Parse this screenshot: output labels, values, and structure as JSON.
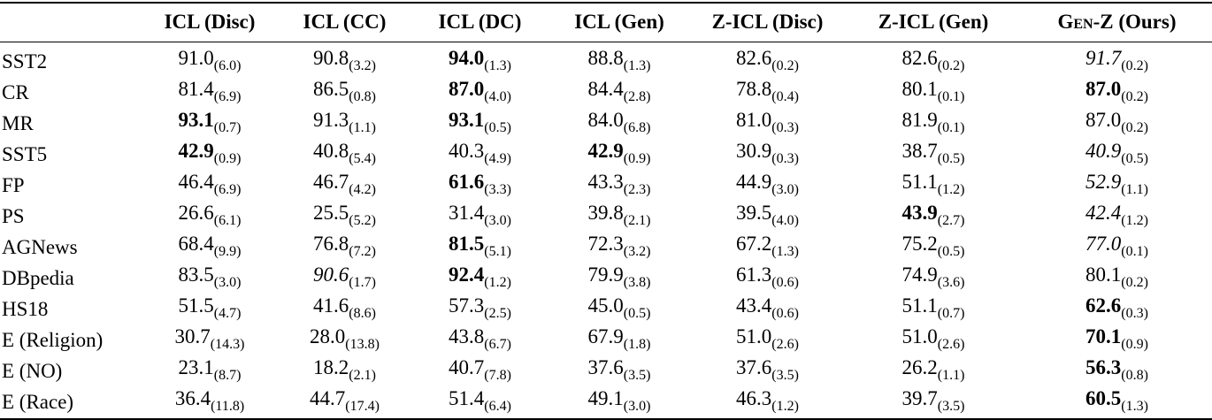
{
  "table": {
    "header": [
      "",
      "ICL (Disc)",
      "ICL (CC)",
      "ICL (DC)",
      "ICL (Gen)",
      "Z-ICL (Disc)",
      "Z-ICL (Gen)",
      {
        "name": "Gen-Z",
        "note": "(Ours)"
      }
    ],
    "rows": [
      {
        "label": "SST2",
        "cells": [
          {
            "value": "91.0",
            "sub": "(6.0)"
          },
          {
            "value": "90.8",
            "sub": "(3.2)"
          },
          {
            "value": "94.0",
            "sub": "(1.3)",
            "style": "bold"
          },
          {
            "value": "88.8",
            "sub": "(1.3)"
          },
          {
            "value": "82.6",
            "sub": "(0.2)"
          },
          {
            "value": "82.6",
            "sub": "(0.2)"
          },
          {
            "value": "91.7",
            "sub": "(0.2)",
            "style": "italic"
          }
        ]
      },
      {
        "label": "CR",
        "cells": [
          {
            "value": "81.4",
            "sub": "(6.9)"
          },
          {
            "value": "86.5",
            "sub": "(0.8)"
          },
          {
            "value": "87.0",
            "sub": "(4.0)",
            "style": "bold"
          },
          {
            "value": "84.4",
            "sub": "(2.8)"
          },
          {
            "value": "78.8",
            "sub": "(0.4)"
          },
          {
            "value": "80.1",
            "sub": "(0.1)"
          },
          {
            "value": "87.0",
            "sub": "(0.2)",
            "style": "bold"
          }
        ]
      },
      {
        "label": "MR",
        "cells": [
          {
            "value": "93.1",
            "sub": "(0.7)",
            "style": "bold"
          },
          {
            "value": "91.3",
            "sub": "(1.1)"
          },
          {
            "value": "93.1",
            "sub": "(0.5)",
            "style": "bold"
          },
          {
            "value": "84.0",
            "sub": "(6.8)"
          },
          {
            "value": "81.0",
            "sub": "(0.3)"
          },
          {
            "value": "81.9",
            "sub": "(0.1)"
          },
          {
            "value": "87.0",
            "sub": "(0.2)"
          }
        ]
      },
      {
        "label": "SST5",
        "cells": [
          {
            "value": "42.9",
            "sub": "(0.9)",
            "style": "bold"
          },
          {
            "value": "40.8",
            "sub": "(5.4)"
          },
          {
            "value": "40.3",
            "sub": "(4.9)"
          },
          {
            "value": "42.9",
            "sub": "(0.9)",
            "style": "bold"
          },
          {
            "value": "30.9",
            "sub": "(0.3)"
          },
          {
            "value": "38.7",
            "sub": "(0.5)"
          },
          {
            "value": "40.9",
            "sub": "(0.5)",
            "style": "italic"
          }
        ]
      },
      {
        "label": "FP",
        "cells": [
          {
            "value": "46.4",
            "sub": "(6.9)"
          },
          {
            "value": "46.7",
            "sub": "(4.2)"
          },
          {
            "value": "61.6",
            "sub": "(3.3)",
            "style": "bold"
          },
          {
            "value": "43.3",
            "sub": "(2.3)"
          },
          {
            "value": "44.9",
            "sub": "(3.0)"
          },
          {
            "value": "51.1",
            "sub": "(1.2)"
          },
          {
            "value": "52.9",
            "sub": "(1.1)",
            "style": "italic"
          }
        ]
      },
      {
        "label": "PS",
        "cells": [
          {
            "value": "26.6",
            "sub": "(6.1)"
          },
          {
            "value": "25.5",
            "sub": "(5.2)"
          },
          {
            "value": "31.4",
            "sub": "(3.0)"
          },
          {
            "value": "39.8",
            "sub": "(2.1)"
          },
          {
            "value": "39.5",
            "sub": "(4.0)"
          },
          {
            "value": "43.9",
            "sub": "(2.7)",
            "style": "bold"
          },
          {
            "value": "42.4",
            "sub": "(1.2)",
            "style": "italic"
          }
        ]
      },
      {
        "label": "AGNews",
        "cells": [
          {
            "value": "68.4",
            "sub": "(9.9)"
          },
          {
            "value": "76.8",
            "sub": "(7.2)"
          },
          {
            "value": "81.5",
            "sub": "(5.1)",
            "style": "bold"
          },
          {
            "value": "72.3",
            "sub": "(3.2)"
          },
          {
            "value": "67.2",
            "sub": "(1.3)"
          },
          {
            "value": "75.2",
            "sub": "(0.5)"
          },
          {
            "value": "77.0",
            "sub": "(0.1)",
            "style": "italic"
          }
        ]
      },
      {
        "label": "DBpedia",
        "cells": [
          {
            "value": "83.5",
            "sub": "(3.0)"
          },
          {
            "value": "90.6",
            "sub": "(1.7)",
            "style": "italic"
          },
          {
            "value": "92.4",
            "sub": "(1.2)",
            "style": "bold"
          },
          {
            "value": "79.9",
            "sub": "(3.8)"
          },
          {
            "value": "61.3",
            "sub": "(0.6)"
          },
          {
            "value": "74.9",
            "sub": "(3.6)"
          },
          {
            "value": "80.1",
            "sub": "(0.2)"
          }
        ]
      },
      {
        "label": "HS18",
        "cells": [
          {
            "value": "51.5",
            "sub": "(4.7)"
          },
          {
            "value": "41.6",
            "sub": "(8.6)"
          },
          {
            "value": "57.3",
            "sub": "(2.5)"
          },
          {
            "value": "45.0",
            "sub": "(0.5)"
          },
          {
            "value": "43.4",
            "sub": "(0.6)"
          },
          {
            "value": "51.1",
            "sub": "(0.7)"
          },
          {
            "value": "62.6",
            "sub": "(0.3)",
            "style": "bold"
          }
        ]
      },
      {
        "label": "E (Religion)",
        "cells": [
          {
            "value": "30.7",
            "sub": "(14.3)"
          },
          {
            "value": "28.0",
            "sub": "(13.8)"
          },
          {
            "value": "43.8",
            "sub": "(6.7)"
          },
          {
            "value": "67.9",
            "sub": "(1.8)"
          },
          {
            "value": "51.0",
            "sub": "(2.6)"
          },
          {
            "value": "51.0",
            "sub": "(2.6)"
          },
          {
            "value": "70.1",
            "sub": "(0.9)",
            "style": "bold"
          }
        ]
      },
      {
        "label": "E (NO)",
        "cells": [
          {
            "value": "23.1",
            "sub": "(8.7)"
          },
          {
            "value": "18.2",
            "sub": "(2.1)"
          },
          {
            "value": "40.7",
            "sub": "(7.8)"
          },
          {
            "value": "37.6",
            "sub": "(3.5)"
          },
          {
            "value": "37.6",
            "sub": "(3.5)"
          },
          {
            "value": "26.2",
            "sub": "(1.1)"
          },
          {
            "value": "56.3",
            "sub": "(0.8)",
            "style": "bold"
          }
        ]
      },
      {
        "label": "E (Race)",
        "cells": [
          {
            "value": "36.4",
            "sub": "(11.8)"
          },
          {
            "value": "44.7",
            "sub": "(17.4)"
          },
          {
            "value": "51.4",
            "sub": "(6.4)"
          },
          {
            "value": "49.1",
            "sub": "(3.0)"
          },
          {
            "value": "46.3",
            "sub": "(1.2)"
          },
          {
            "value": "39.7",
            "sub": "(3.5)"
          },
          {
            "value": "60.5",
            "sub": "(1.3)",
            "style": "bold"
          }
        ]
      }
    ]
  }
}
